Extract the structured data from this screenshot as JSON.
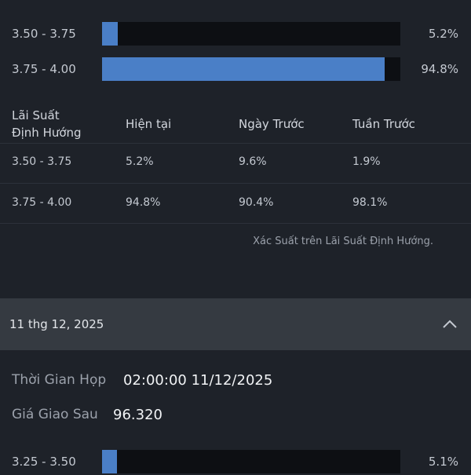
{
  "top_bars": [
    {
      "range": "3.50 - 3.75",
      "percent": "5.2%",
      "fraction": 0.052
    },
    {
      "range": "3.75 - 4.00",
      "percent": "94.8%",
      "fraction": 0.948
    }
  ],
  "table": {
    "headers": {
      "col1_line1": "Lãi Suất",
      "col1_line2": "Định Hướng",
      "col2": "Hiện tại",
      "col3": "Ngày Trước",
      "col4": "Tuần Trước"
    },
    "rows": [
      {
        "range": "3.50 - 3.75",
        "current": "5.2%",
        "prev_day": "9.6%",
        "prev_week": "1.9%"
      },
      {
        "range": "3.75 - 4.00",
        "current": "94.8%",
        "prev_day": "90.4%",
        "prev_week": "98.1%"
      }
    ],
    "note": "Xác Suất trên Lãi Suất Định Hướng."
  },
  "section": {
    "date": "11 thg 12, 2025",
    "icon": "chevron-up-icon",
    "meeting_time_label": "Thời Gian Họp",
    "meeting_time_value": "02:00:00 11/12/2025",
    "futures_price_label": "Giá Giao Sau",
    "futures_price_value": "96.320"
  },
  "bottom_bars": [
    {
      "range": "3.25 - 3.50",
      "percent": "5.1%",
      "fraction": 0.051
    }
  ],
  "colors": {
    "background": "#1e2229",
    "bar_fill": "#4a7fc7",
    "bar_track": "#0d0f13",
    "section_header": "#353a41"
  }
}
